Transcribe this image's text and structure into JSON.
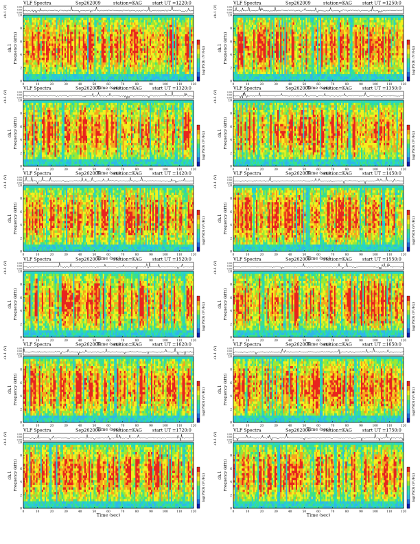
{
  "figure": {
    "header_left": "VLF Spectra",
    "date": "Sep262009",
    "station": "station=KAG",
    "start_prefix": "start UT =",
    "wave_axis_label": "ch.1 (V)",
    "wave_ticks": [
      "0.00",
      "0.00",
      "-0.00"
    ],
    "channel_label": "ch.1",
    "freq_axis_label": "Frequency (kHz)",
    "time_axis_label": "Time (sec)",
    "colorbar_label": "log(PSD) (V²/Hz)"
  },
  "colors": {
    "scale": [
      "#0a1fb0",
      "#1f6de0",
      "#2fb8e8",
      "#27d4c8",
      "#3be08a",
      "#9ae835",
      "#f2f020",
      "#f6a41c",
      "#e8251e"
    ],
    "waveform": "#000000",
    "frame": "#000000"
  },
  "chart_data": [
    {
      "type": "heatmap",
      "start_ut": "1220:0",
      "xlim": [
        0,
        120
      ],
      "ylim": [
        0,
        10
      ],
      "x_ticks": [
        0,
        10,
        20,
        30,
        40,
        50,
        60,
        70,
        80,
        90,
        100,
        110,
        120
      ],
      "y_ticks": [
        0,
        2,
        4,
        6,
        8,
        10
      ],
      "signal_band_khz": [
        1,
        9.5
      ]
    },
    {
      "type": "heatmap",
      "start_ut": "1250:0",
      "xlim": [
        0,
        120
      ],
      "ylim": [
        0,
        10
      ],
      "x_ticks": [
        0,
        10,
        20,
        30,
        40,
        50,
        60,
        70,
        80,
        90,
        100,
        110,
        120
      ],
      "y_ticks": [
        0,
        2,
        4,
        6,
        8,
        10
      ],
      "signal_band_khz": [
        1,
        9.5
      ]
    },
    {
      "type": "heatmap",
      "start_ut": "1320:0",
      "xlim": [
        0,
        120
      ],
      "ylim": [
        0,
        10
      ],
      "x_ticks": [
        0,
        10,
        20,
        30,
        40,
        50,
        60,
        70,
        80,
        90,
        100,
        110,
        120
      ],
      "y_ticks": [
        0,
        2,
        4,
        6,
        8,
        10
      ],
      "signal_band_khz": [
        1,
        9.5
      ]
    },
    {
      "type": "heatmap",
      "start_ut": "1350:0",
      "xlim": [
        0,
        120
      ],
      "ylim": [
        0,
        10
      ],
      "x_ticks": [
        0,
        10,
        20,
        30,
        40,
        50,
        60,
        70,
        80,
        90,
        100,
        110,
        120
      ],
      "y_ticks": [
        0,
        2,
        4,
        6,
        8,
        10
      ],
      "signal_band_khz": [
        1,
        9.5
      ]
    },
    {
      "type": "heatmap",
      "start_ut": "1420:0",
      "xlim": [
        0,
        120
      ],
      "ylim": [
        0,
        10
      ],
      "x_ticks": [
        0,
        10,
        20,
        30,
        40,
        50,
        60,
        70,
        80,
        90,
        100,
        110,
        120
      ],
      "y_ticks": [
        0,
        2,
        4,
        6,
        8,
        10
      ],
      "signal_band_khz": [
        1,
        9.5
      ]
    },
    {
      "type": "heatmap",
      "start_ut": "1450:0",
      "xlim": [
        0,
        120
      ],
      "ylim": [
        0,
        10
      ],
      "x_ticks": [
        0,
        10,
        20,
        30,
        40,
        50,
        60,
        70,
        80,
        90,
        100,
        110,
        120
      ],
      "y_ticks": [
        0,
        2,
        4,
        6,
        8,
        10
      ],
      "signal_band_khz": [
        1,
        9.5
      ]
    },
    {
      "type": "heatmap",
      "start_ut": "1520:0",
      "xlim": [
        0,
        120
      ],
      "ylim": [
        0,
        10
      ],
      "x_ticks": [
        0,
        10,
        20,
        30,
        40,
        50,
        60,
        70,
        80,
        90,
        100,
        110,
        120
      ],
      "y_ticks": [
        0,
        2,
        4,
        6,
        8,
        10
      ],
      "signal_band_khz": [
        1,
        9.5
      ]
    },
    {
      "type": "heatmap",
      "start_ut": "1550:0",
      "xlim": [
        0,
        120
      ],
      "ylim": [
        0,
        10
      ],
      "x_ticks": [
        0,
        10,
        20,
        30,
        40,
        50,
        60,
        70,
        80,
        90,
        100,
        110,
        120
      ],
      "y_ticks": [
        0,
        2,
        4,
        6,
        8,
        10
      ],
      "signal_band_khz": [
        1,
        9.5
      ]
    },
    {
      "type": "heatmap",
      "start_ut": "1620:0",
      "xlim": [
        0,
        120
      ],
      "ylim": [
        0,
        10
      ],
      "x_ticks": [
        0,
        10,
        20,
        30,
        40,
        50,
        60,
        70,
        80,
        90,
        100,
        110,
        120
      ],
      "y_ticks": [
        0,
        2,
        4,
        6,
        8,
        10
      ],
      "signal_band_khz": [
        1,
        9.5
      ]
    },
    {
      "type": "heatmap",
      "start_ut": "1650:0",
      "xlim": [
        0,
        120
      ],
      "ylim": [
        0,
        10
      ],
      "x_ticks": [
        0,
        10,
        20,
        30,
        40,
        50,
        60,
        70,
        80,
        90,
        100,
        110,
        120
      ],
      "y_ticks": [
        0,
        2,
        4,
        6,
        8,
        10
      ],
      "signal_band_khz": [
        1,
        9.5
      ]
    },
    {
      "type": "heatmap",
      "start_ut": "1720:0",
      "xlim": [
        0,
        120
      ],
      "ylim": [
        0,
        10
      ],
      "x_ticks": [
        0,
        10,
        20,
        30,
        40,
        50,
        60,
        70,
        80,
        90,
        100,
        110,
        120
      ],
      "y_ticks": [
        0,
        2,
        4,
        6,
        8,
        10
      ],
      "signal_band_khz": [
        1,
        9.5
      ]
    },
    {
      "type": "heatmap",
      "start_ut": "1750:0",
      "xlim": [
        0,
        120
      ],
      "ylim": [
        0,
        10
      ],
      "x_ticks": [
        0,
        10,
        20,
        30,
        40,
        50,
        60,
        70,
        80,
        90,
        100,
        110,
        120
      ],
      "y_ticks": [
        0,
        2,
        4,
        6,
        8,
        10
      ],
      "signal_band_khz": [
        1,
        9.5
      ]
    }
  ]
}
